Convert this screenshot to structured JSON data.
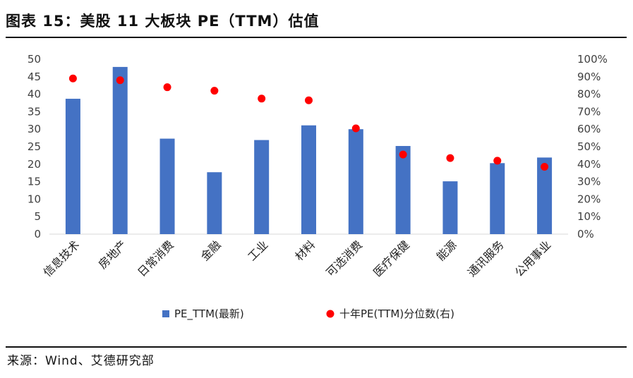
{
  "figure": {
    "title": "图表 15：美股 11 大板块 PE（TTM）估值",
    "source": "来源：Wind、艾德研究部"
  },
  "chart_data": {
    "type": "bar",
    "categories": [
      "信息技术",
      "房地产",
      "日常消费",
      "金融",
      "工业",
      "材料",
      "可选消费",
      "医疗保健",
      "能源",
      "通讯服务",
      "公用事业"
    ],
    "series": [
      {
        "name": "PE_TTM(最新)",
        "kind": "bar",
        "axis": "left",
        "color": "#4472C4",
        "values": [
          38.7,
          47.8,
          27.3,
          17.7,
          26.9,
          31.1,
          30.0,
          25.2,
          15.1,
          20.3,
          21.9
        ]
      },
      {
        "name": "十年PE(TTM)分位数(右)",
        "kind": "scatter",
        "axis": "right",
        "color": "#FF0000",
        "values": [
          0.89,
          0.88,
          0.84,
          0.82,
          0.775,
          0.765,
          0.605,
          0.455,
          0.435,
          0.42,
          0.385
        ]
      }
    ],
    "yleft": {
      "ticks": [
        "0",
        "5",
        "10",
        "15",
        "20",
        "25",
        "30",
        "35",
        "40",
        "45",
        "50"
      ],
      "ylim": [
        0,
        50
      ]
    },
    "yright": {
      "ticks": [
        "0%",
        "10%",
        "20%",
        "30%",
        "40%",
        "50%",
        "60%",
        "70%",
        "80%",
        "90%",
        "100%"
      ],
      "ylim": [
        0,
        1
      ]
    },
    "legend_position": "bottom",
    "grid": false
  }
}
